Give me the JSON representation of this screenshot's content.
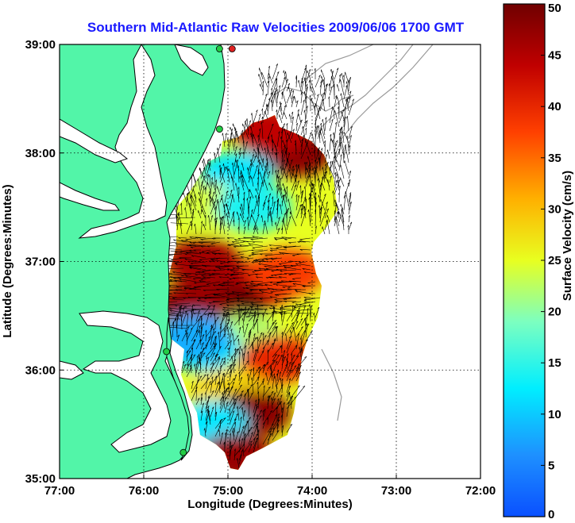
{
  "chart_data": {
    "type": "heatmap",
    "title": "Southern Mid-Atlantic Raw Velocities 2009/06/06 1700 GMT",
    "xlabel": "Longitude (Degrees:Minutes)",
    "ylabel": "Latitude (Degrees:Minutes)",
    "xlim": [
      -77,
      -72
    ],
    "ylim": [
      35,
      39
    ],
    "x_ticks": [
      {
        "value": -77,
        "label": "77:00"
      },
      {
        "value": -76,
        "label": "76:00"
      },
      {
        "value": -75,
        "label": "75:00"
      },
      {
        "value": -74,
        "label": "74:00"
      },
      {
        "value": -73,
        "label": "73:00"
      },
      {
        "value": -72,
        "label": "72:00"
      }
    ],
    "y_ticks": [
      {
        "value": 35,
        "label": "35:00"
      },
      {
        "value": 36,
        "label": "36:00"
      },
      {
        "value": 37,
        "label": "37:00"
      },
      {
        "value": 38,
        "label": "38:00"
      },
      {
        "value": 39,
        "label": "39:00"
      }
    ],
    "grid": "dotted",
    "colorbar": {
      "label": "Surface Velocity (cm/s)",
      "range": [
        0,
        50
      ],
      "ticks": [
        0,
        5,
        10,
        15,
        20,
        25,
        30,
        35,
        40,
        45,
        50
      ],
      "colormap": "jet",
      "placement": "right"
    },
    "velocity_field": [
      {
        "lon": -74.2,
        "lat": 38.0,
        "speed": 48
      },
      {
        "lon": -74.5,
        "lat": 38.2,
        "speed": 44
      },
      {
        "lon": -74.9,
        "lat": 37.8,
        "speed": 12
      },
      {
        "lon": -75.2,
        "lat": 37.5,
        "speed": 24
      },
      {
        "lon": -74.7,
        "lat": 37.5,
        "speed": 14
      },
      {
        "lon": -75.3,
        "lat": 37.0,
        "speed": 46
      },
      {
        "lon": -74.6,
        "lat": 36.8,
        "speed": 44
      },
      {
        "lon": -74.3,
        "lat": 36.9,
        "speed": 38
      },
      {
        "lon": -75.0,
        "lat": 36.6,
        "speed": 50
      },
      {
        "lon": -75.4,
        "lat": 36.6,
        "speed": 47
      },
      {
        "lon": -74.8,
        "lat": 36.3,
        "speed": 22
      },
      {
        "lon": -75.3,
        "lat": 36.2,
        "speed": 12
      },
      {
        "lon": -75.4,
        "lat": 36.3,
        "speed": 8
      },
      {
        "lon": -74.4,
        "lat": 36.1,
        "speed": 40
      },
      {
        "lon": -75.0,
        "lat": 35.8,
        "speed": 28
      },
      {
        "lon": -74.7,
        "lat": 35.6,
        "speed": 48
      },
      {
        "lon": -75.2,
        "lat": 35.5,
        "speed": 12
      },
      {
        "lon": -74.9,
        "lat": 35.2,
        "speed": 47
      }
    ],
    "stations": [
      {
        "lon": -74.95,
        "lat": 38.96,
        "color": "#e02020"
      },
      {
        "lon": -75.1,
        "lat": 38.96,
        "color": "#22cc44"
      },
      {
        "lon": -75.1,
        "lat": 38.22,
        "color": "#22cc44"
      },
      {
        "lon": -75.73,
        "lat": 36.17,
        "color": "#22cc44"
      },
      {
        "lon": -75.53,
        "lat": 35.24,
        "color": "#22cc44"
      }
    ],
    "colors": {
      "land": "#52f5a8",
      "coast": "#000000",
      "isobath": "#9a9a9a",
      "title": "#1a1aff"
    }
  }
}
